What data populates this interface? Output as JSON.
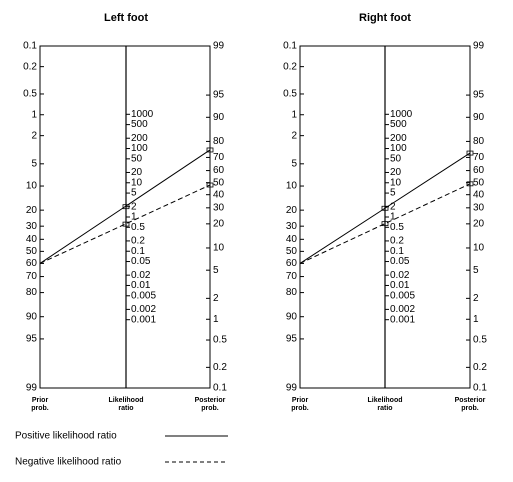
{
  "chart_data": [
    {
      "type": "nomogram",
      "title": "Left foot",
      "axis_labels": {
        "prior": [
          "Prior",
          "prob."
        ],
        "likelihood_ratio": [
          "Likelihood",
          "ratio"
        ],
        "posterior": [
          "Posterior",
          "prob."
        ]
      },
      "prior_lim": [
        0.1,
        99
      ],
      "posterior_lim": [
        99,
        0.1
      ],
      "prior_ticks": [
        0.1,
        0.2,
        0.5,
        1,
        2,
        5,
        10,
        20,
        30,
        40,
        50,
        60,
        70,
        80,
        90,
        95,
        99
      ],
      "lr_ticks": [
        1000,
        500,
        200,
        100,
        50,
        20,
        10,
        5,
        2,
        1,
        0.5,
        0.2,
        0.1,
        0.05,
        0.02,
        0.01,
        0.005,
        0.002,
        0.001
      ],
      "posterior_ticks": [
        99,
        95,
        90,
        80,
        70,
        60,
        50,
        40,
        30,
        20,
        10,
        5,
        2,
        1,
        0.5,
        0.2,
        0.1
      ],
      "series": [
        {
          "prior": 60,
          "likelihood_ratio": 2,
          "posterior": 75
        },
        {
          "prior": 60,
          "likelihood_ratio": 0.62,
          "posterior": 48
        }
      ]
    },
    {
      "type": "nomogram",
      "title": "Right foot",
      "axis_labels": {
        "prior": [
          "Prior",
          "prob."
        ],
        "likelihood_ratio": [
          "Likelihood",
          "ratio"
        ],
        "posterior": [
          "Posterior",
          "prob."
        ]
      },
      "prior_lim": [
        0.1,
        99
      ],
      "posterior_lim": [
        99,
        0.1
      ],
      "prior_ticks": [
        0.1,
        0.2,
        0.5,
        1,
        2,
        5,
        10,
        20,
        30,
        40,
        50,
        60,
        70,
        80,
        90,
        95,
        99
      ],
      "lr_ticks": [
        1000,
        500,
        200,
        100,
        50,
        20,
        10,
        5,
        2,
        1,
        0.5,
        0.2,
        0.1,
        0.05,
        0.02,
        0.01,
        0.005,
        0.002,
        0.001
      ],
      "posterior_ticks": [
        99,
        95,
        90,
        80,
        70,
        60,
        50,
        40,
        30,
        20,
        10,
        5,
        2,
        1,
        0.5,
        0.2,
        0.1
      ],
      "series": [
        {
          "prior": 60,
          "likelihood_ratio": 1.8,
          "posterior": 73
        },
        {
          "prior": 60,
          "likelihood_ratio": 0.64,
          "posterior": 49
        }
      ]
    }
  ],
  "legend": [
    {
      "name": "Positive likelihood ratio",
      "dashed": false
    },
    {
      "name": "Negative likelihood ratio",
      "dashed": true
    }
  ]
}
